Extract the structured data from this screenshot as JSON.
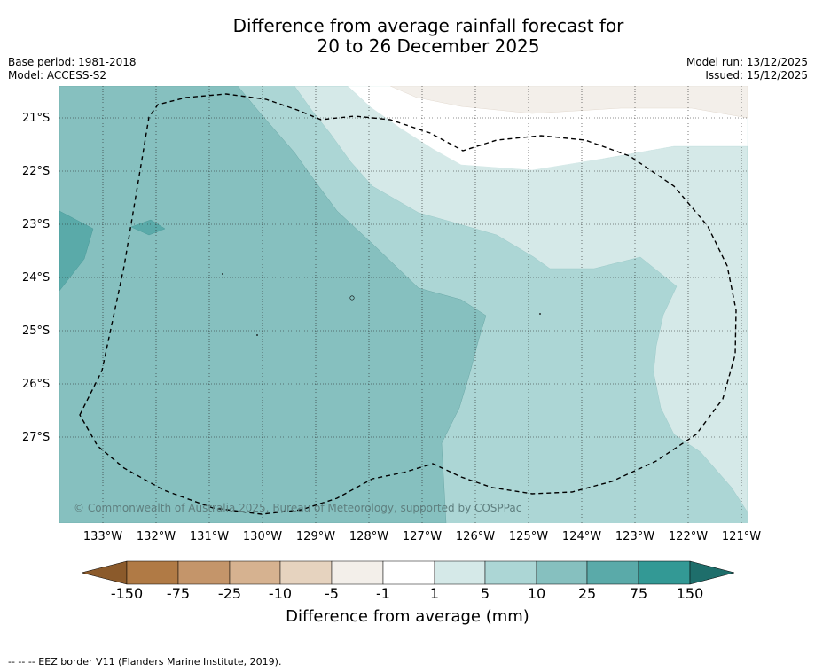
{
  "title": {
    "line1": "Difference from average rainfall forecast for",
    "line2": "20 to 26 December 2025"
  },
  "meta_left": {
    "base_period": "Base period: 1981-2018",
    "model": "Model: ACCESS-S2"
  },
  "meta_right": {
    "model_run": "Model run: 13/12/2025",
    "issued": "Issued: 15/12/2025"
  },
  "map": {
    "latitude_labels": [
      "21°S",
      "22°S",
      "23°S",
      "24°S",
      "25°S",
      "26°S",
      "27°S"
    ],
    "longitude_labels": [
      "133°W",
      "132°W",
      "131°W",
      "130°W",
      "129°W",
      "128°W",
      "127°W",
      "126°W",
      "125°W",
      "124°W",
      "123°W",
      "122°W",
      "121°W"
    ],
    "copyright": "© Commonwealth of Australia 2025, Bureau of Meteorology, supported by COSPPac",
    "eez_border_present": true
  },
  "legend": {
    "ticks": [
      "-150",
      "-75",
      "-25",
      "-10",
      "-5",
      "-1",
      "1",
      "5",
      "10",
      "25",
      "75",
      "150"
    ],
    "colors": [
      "#8b5a2b",
      "#b07a45",
      "#c4956a",
      "#d6b290",
      "#e6d3bf",
      "#f3efea",
      "#ffffff",
      "#d5e9e8",
      "#acd6d5",
      "#86c0bf",
      "#5aaaa9",
      "#339995",
      "#1e6e6b"
    ],
    "title": "Difference from average (mm)"
  },
  "footer": {
    "text": "--  --  -- EEZ border V11 (Flanders Marine Institute, 2019)."
  }
}
